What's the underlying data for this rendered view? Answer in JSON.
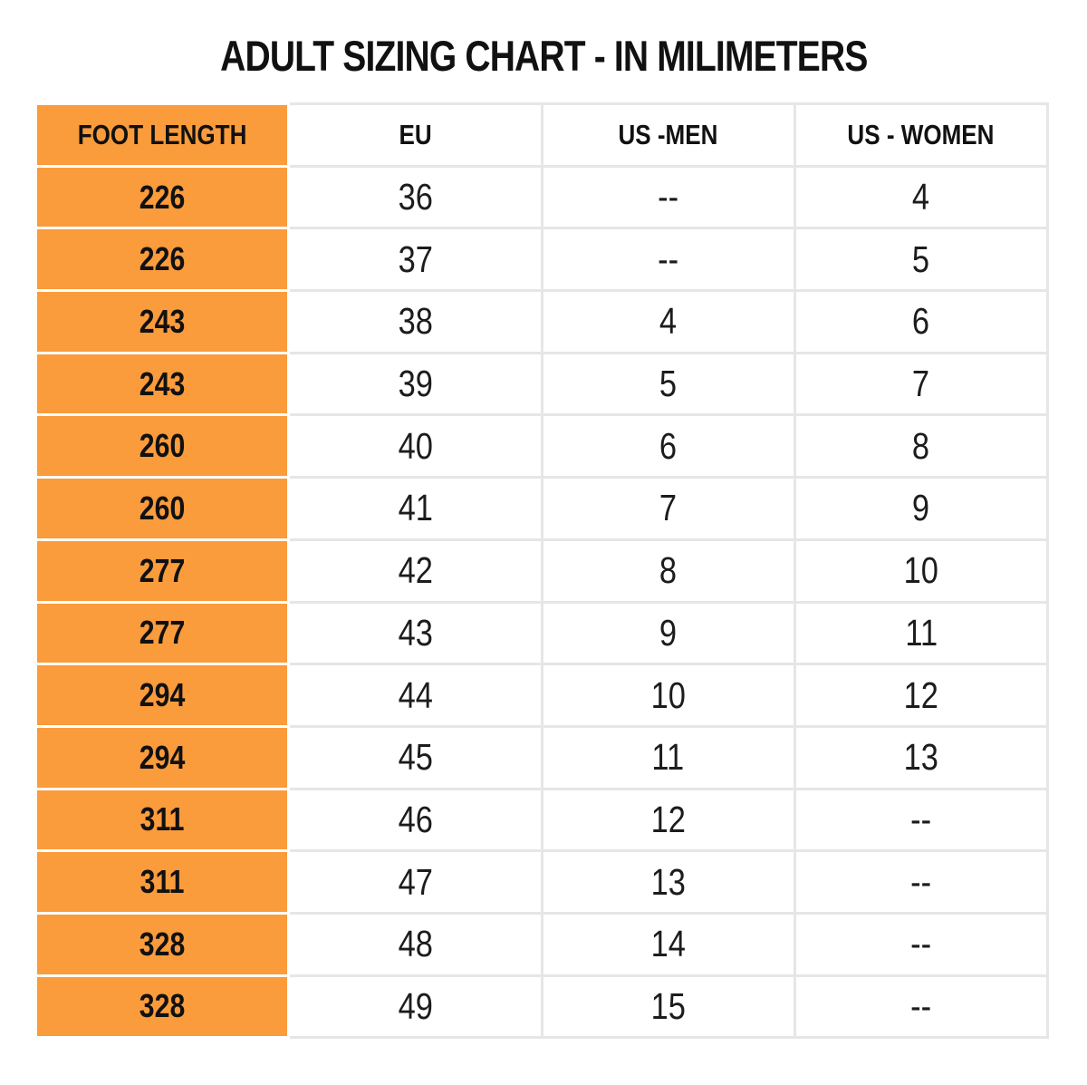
{
  "title": "ADULT SIZING CHART - IN MILIMETERS",
  "colors": {
    "header_and_foot_column_bg": "#FA9B3C",
    "grid_border": "#E6E6E6",
    "text": "#1A1A1A",
    "page_bg": "#FFFFFF"
  },
  "chart_data": {
    "type": "table",
    "title": "ADULT SIZING CHART - IN MILIMETERS",
    "columns": [
      "FOOT LENGTH",
      "EU",
      "US -MEN",
      "US - WOMEN"
    ],
    "rows": [
      [
        "226",
        "36",
        "--",
        "4"
      ],
      [
        "226",
        "37",
        "--",
        "5"
      ],
      [
        "243",
        "38",
        "4",
        "6"
      ],
      [
        "243",
        "39",
        "5",
        "7"
      ],
      [
        "260",
        "40",
        "6",
        "8"
      ],
      [
        "260",
        "41",
        "7",
        "9"
      ],
      [
        "277",
        "42",
        "8",
        "10"
      ],
      [
        "277",
        "43",
        "9",
        "11"
      ],
      [
        "294",
        "44",
        "10",
        "12"
      ],
      [
        "294",
        "45",
        "11",
        "13"
      ],
      [
        "311",
        "46",
        "12",
        "--"
      ],
      [
        "311",
        "47",
        "13",
        "--"
      ],
      [
        "328",
        "48",
        "14",
        "--"
      ],
      [
        "328",
        "49",
        "15",
        "--"
      ]
    ]
  }
}
